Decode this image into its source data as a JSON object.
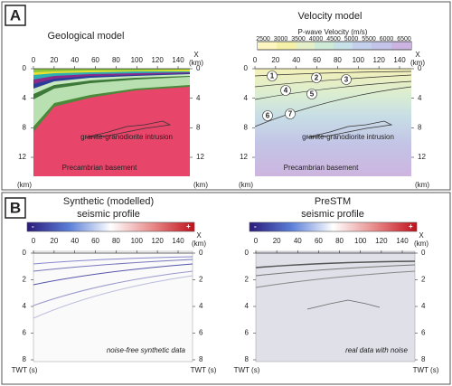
{
  "panel_a": {
    "label": "A",
    "geological": {
      "title": "Geological model",
      "x_label": "X",
      "unit": "(km)",
      "xticks": [
        0,
        20,
        40,
        60,
        80,
        100,
        120,
        140
      ],
      "yticks": [
        0,
        4,
        8,
        12
      ],
      "annotations": [
        "granite-granodiorite intrusion",
        "Precambrian basement"
      ]
    },
    "velocity": {
      "title": "Velocity model",
      "colorbar_title": "P-wave Velocity (m/s)",
      "colorbar_ticks": [
        2500,
        3000,
        3500,
        4000,
        4500,
        5000,
        5500,
        6000,
        6500
      ],
      "x_label": "X",
      "unit": "(km)",
      "xticks": [
        0,
        20,
        40,
        60,
        80,
        100,
        120,
        140
      ],
      "yticks": [
        0,
        4,
        8,
        12
      ],
      "layer_labels": [
        "1",
        "2",
        "3",
        "4",
        "5",
        "6",
        "7"
      ],
      "annotations": [
        "granite-granodiorite intrusion",
        "Precambrian basement"
      ]
    }
  },
  "panel_b": {
    "label": "B",
    "synthetic": {
      "title": [
        "Synthetic (modelled)",
        "seismic profile"
      ],
      "colorbar_signs": [
        "-",
        "+"
      ],
      "x_label": "X",
      "unit": "(km)",
      "xticks": [
        0,
        20,
        40,
        60,
        80,
        100,
        120,
        140
      ],
      "yticks": [
        0,
        2,
        4,
        6,
        8
      ],
      "y_unit": "TWT (s)",
      "note": "noise-free synthetic data"
    },
    "prestm": {
      "title": [
        "PreSTM",
        "seismic profile"
      ],
      "colorbar_signs": [
        "-",
        "+"
      ],
      "x_label": "X",
      "unit": "(km)",
      "xticks": [
        0,
        20,
        40,
        60,
        80,
        100,
        120,
        140
      ],
      "yticks": [
        0,
        2,
        4,
        6,
        8
      ],
      "y_unit": "TWT (s)",
      "note": "real data with noise"
    }
  }
}
